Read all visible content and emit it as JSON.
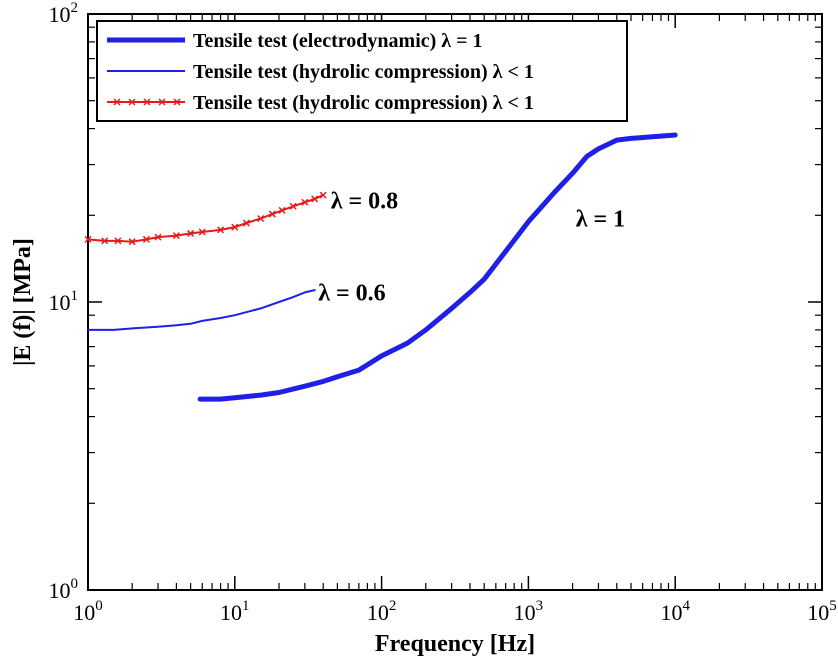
{
  "chart_data": {
    "type": "line",
    "title": "",
    "xlabel": "Frequency [Hz]",
    "ylabel": "|E (f)| [MPa]",
    "xscale": "log",
    "yscale": "log",
    "xlim": [
      1,
      100000
    ],
    "ylim": [
      1,
      100
    ],
    "grid": false,
    "legend_position": "top-left",
    "x_ticks": [
      {
        "value": 1,
        "base": "10",
        "exp": "0"
      },
      {
        "value": 10,
        "base": "10",
        "exp": "1"
      },
      {
        "value": 100,
        "base": "10",
        "exp": "2"
      },
      {
        "value": 1000,
        "base": "10",
        "exp": "3"
      },
      {
        "value": 10000,
        "base": "10",
        "exp": "4"
      },
      {
        "value": 100000,
        "base": "10",
        "exp": "5"
      }
    ],
    "y_ticks": [
      {
        "value": 1,
        "base": "10",
        "exp": "0"
      },
      {
        "value": 10,
        "base": "10",
        "exp": "1"
      },
      {
        "value": 100,
        "base": "10",
        "exp": "2"
      }
    ],
    "series": [
      {
        "name": "Tensile test (electrodynamic) λ = 1",
        "color": "#1f1fe6",
        "style": "thick",
        "x": [
          5.8,
          8,
          10,
          15,
          20,
          30,
          40,
          50,
          70,
          100,
          150,
          200,
          300,
          400,
          500,
          700,
          1000,
          1500,
          2000,
          2500,
          3000,
          4000,
          5000,
          7000,
          10000
        ],
        "y": [
          4.6,
          4.6,
          4.65,
          4.75,
          4.85,
          5.1,
          5.3,
          5.5,
          5.8,
          6.5,
          7.2,
          8.0,
          9.5,
          10.8,
          12.0,
          15.0,
          19.0,
          24.0,
          28.0,
          32.0,
          34.0,
          36.5,
          37.0,
          37.5,
          38.0
        ]
      },
      {
        "name": "Tensile test (hydrolic compression) λ < 1",
        "color": "#1f1fe6",
        "style": "thin",
        "label": "λ = 0.6",
        "x": [
          1,
          1.5,
          2,
          3,
          4,
          5,
          6,
          8,
          10,
          15,
          20,
          25,
          30,
          35
        ],
        "y": [
          8.0,
          8.0,
          8.1,
          8.2,
          8.3,
          8.4,
          8.6,
          8.8,
          9.0,
          9.5,
          10.0,
          10.4,
          10.8,
          11.0
        ]
      },
      {
        "name": "Tensile test (hydrolic compression) λ < 1",
        "color": "#e61a1a",
        "style": "markers",
        "label": "λ = 0.8",
        "x": [
          1,
          1.3,
          1.6,
          2,
          2.5,
          3,
          4,
          5,
          6,
          8,
          10,
          12,
          15,
          18,
          21,
          25,
          30,
          35,
          40
        ],
        "y": [
          16.5,
          16.3,
          16.3,
          16.2,
          16.5,
          16.8,
          17.0,
          17.3,
          17.5,
          17.8,
          18.2,
          18.8,
          19.5,
          20.2,
          20.8,
          21.5,
          22.2,
          22.8,
          23.5
        ]
      }
    ],
    "annotations": [
      {
        "text": "λ = 0.8",
        "x": 45,
        "y": 22.5
      },
      {
        "text": "λ = 0.6",
        "x": 37,
        "y": 10.8
      },
      {
        "text": "λ = 1",
        "x": 2100,
        "y": 19.5
      }
    ]
  }
}
